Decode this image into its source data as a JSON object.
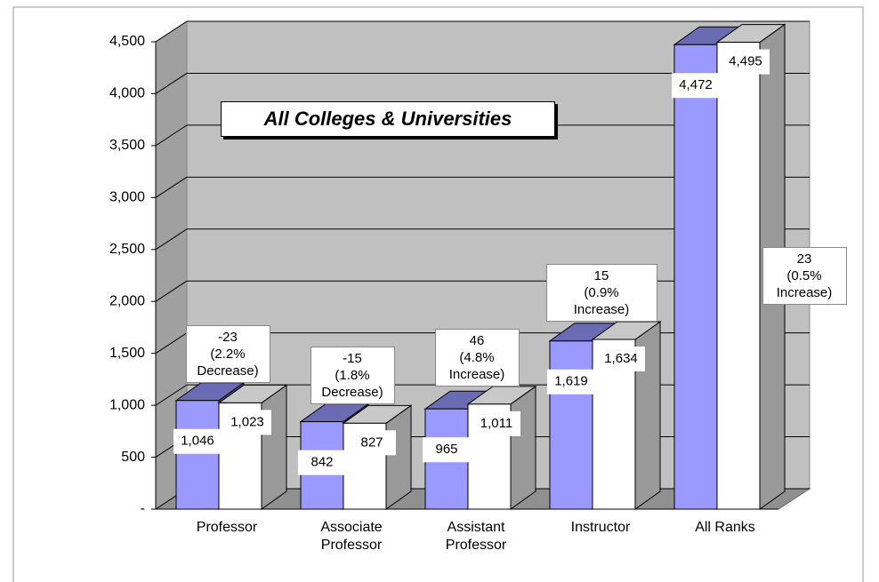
{
  "chart_data": {
    "type": "bar",
    "title": "All Colleges & Universities",
    "categories": [
      "Professor",
      "Associate Professor",
      "Assistant Professor",
      "Instructor",
      "All Ranks"
    ],
    "series": [
      {
        "color": "#9999ff",
        "values": [
          1046,
          842,
          965,
          1619,
          4472
        ],
        "value_labels": [
          "1,046",
          "842",
          "965",
          "1,619",
          "4,472"
        ]
      },
      {
        "color": "#ffffff",
        "values": [
          1023,
          827,
          1011,
          1634,
          4495
        ],
        "value_labels": [
          "1,023",
          "827",
          "1,011",
          "1,634",
          "4,495"
        ]
      }
    ],
    "annotations": [
      {
        "lines": [
          "-23",
          "(2.2%",
          "Decrease)"
        ]
      },
      {
        "lines": [
          "-15",
          "(1.8%",
          "Decrease)"
        ]
      },
      {
        "lines": [
          "46",
          "(4.8%",
          "Increase)"
        ]
      },
      {
        "lines": [
          "15",
          "(0.9%",
          "Increase)"
        ]
      },
      {
        "lines": [
          "23",
          "(0.5%",
          "Increase)"
        ]
      }
    ],
    "ylim": [
      0,
      4500
    ],
    "yticks": [
      {
        "value": 0,
        "label": "-"
      },
      500,
      {
        "value": 1000,
        "label": "1,000"
      },
      {
        "value": 1500,
        "label": "1,500"
      },
      {
        "value": 2000,
        "label": "2,000"
      },
      {
        "value": 2500,
        "label": "2,500"
      },
      {
        "value": 3000,
        "label": "3,000"
      },
      {
        "value": 3500,
        "label": "3,500"
      },
      {
        "value": 4000,
        "label": "4,000"
      },
      {
        "value": 4500,
        "label": "4,500"
      }
    ],
    "grid": true
  }
}
